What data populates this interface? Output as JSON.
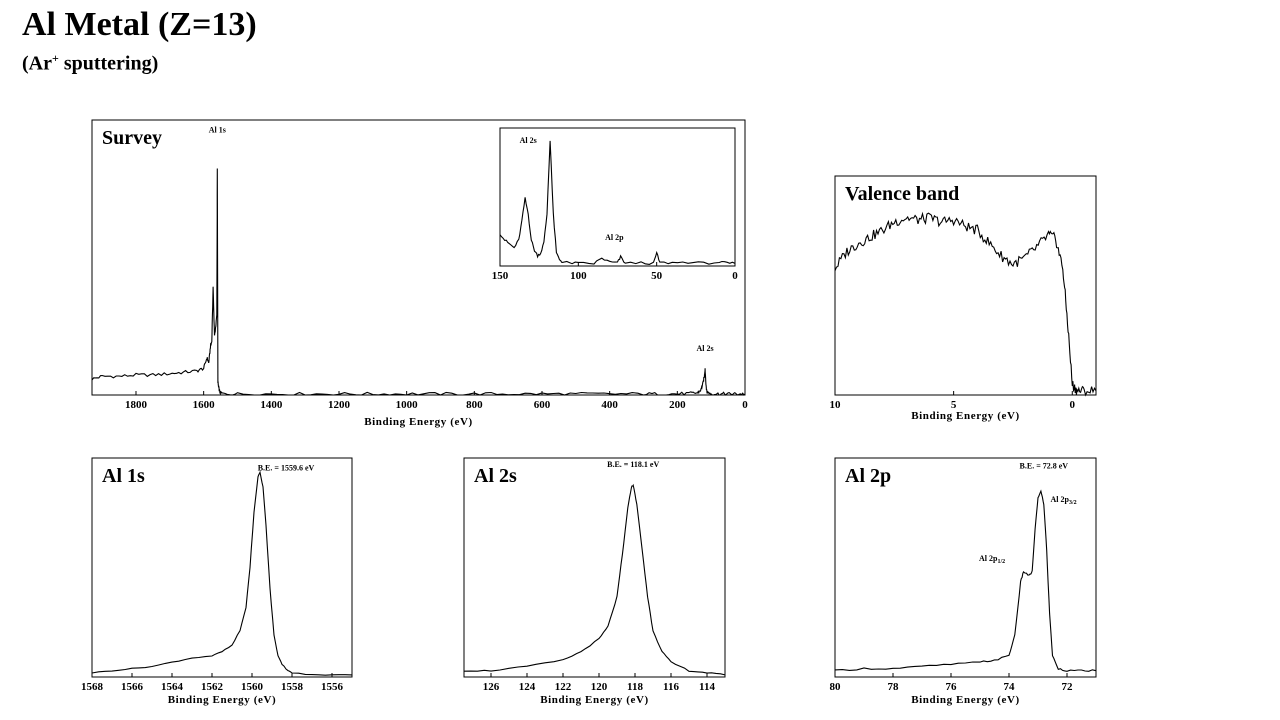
{
  "header": {
    "title": "Al Metal (Z=13)",
    "subtitle_pre": "(Ar",
    "subtitle_sup": "+",
    "subtitle_post": " sputtering)"
  },
  "chart_data": [
    {
      "id": "survey",
      "type": "line",
      "title": "Survey",
      "xlabel": "Binding Energy (eV)",
      "ylabel": "",
      "xlim": [
        1930,
        0
      ],
      "ylim": [
        0,
        1.0
      ],
      "xticks": [
        1800,
        1600,
        1400,
        1200,
        1000,
        800,
        600,
        400,
        200,
        0
      ],
      "annotations": [
        {
          "text": "Al 1s",
          "x": 1559.6,
          "y": 0.93
        },
        {
          "text": "Al 2s",
          "x": 118,
          "y": 0.09
        }
      ],
      "x": [
        1930,
        1900,
        1850,
        1800,
        1750,
        1700,
        1660,
        1620,
        1600,
        1590,
        1585,
        1580,
        1576,
        1572,
        1568,
        1564,
        1561,
        1559.6,
        1558,
        1556,
        1552,
        1545,
        1500,
        1400,
        1300,
        1200,
        1100,
        1000,
        900,
        800,
        700,
        600,
        500,
        400,
        300,
        250,
        200,
        160,
        140,
        130,
        125,
        120,
        118,
        115,
        112,
        100,
        80,
        60,
        40,
        20,
        0
      ],
      "y": [
        0.06,
        0.07,
        0.07,
        0.075,
        0.075,
        0.08,
        0.085,
        0.09,
        0.1,
        0.14,
        0.12,
        0.18,
        0.2,
        0.4,
        0.22,
        0.26,
        0.3,
        0.85,
        0.05,
        0.03,
        0.01,
        0.005,
        0.004,
        0.004,
        0.004,
        0.004,
        0.004,
        0.004,
        0.004,
        0.004,
        0.004,
        0.004,
        0.004,
        0.004,
        0.004,
        0.004,
        0.004,
        0.006,
        0.008,
        0.02,
        0.04,
        0.07,
        0.1,
        0.03,
        0.01,
        0.005,
        0.004,
        0.004,
        0.004,
        0.004,
        0.004
      ]
    },
    {
      "id": "survey-inset",
      "type": "line",
      "title": "",
      "xlabel": "",
      "ylabel": "",
      "xlim": [
        150,
        0
      ],
      "ylim": [
        0,
        1.0
      ],
      "xticks": [
        150,
        100,
        50,
        0
      ],
      "annotations": [
        {
          "text": "Al 2s",
          "x": 132,
          "y": 0.9
        },
        {
          "text": "Al 2p",
          "x": 77,
          "y": 0.17
        }
      ],
      "x": [
        150,
        147,
        144,
        141,
        138,
        136,
        134,
        132,
        130,
        128,
        126,
        124,
        122,
        120,
        118,
        116,
        114,
        112,
        110,
        106,
        100,
        90,
        85,
        80,
        75,
        73,
        70,
        60,
        52,
        50,
        48,
        40,
        30,
        20,
        10,
        5,
        0
      ],
      "y": [
        0.25,
        0.2,
        0.17,
        0.14,
        0.2,
        0.35,
        0.52,
        0.4,
        0.2,
        0.12,
        0.08,
        0.1,
        0.18,
        0.4,
        0.97,
        0.4,
        0.1,
        0.05,
        0.03,
        0.025,
        0.02,
        0.02,
        0.06,
        0.03,
        0.025,
        0.07,
        0.02,
        0.025,
        0.02,
        0.1,
        0.025,
        0.025,
        0.03,
        0.02,
        0.03,
        0.02,
        0.02
      ]
    },
    {
      "id": "valence",
      "type": "line",
      "title": "Valence band",
      "xlabel": "Binding Energy (eV)",
      "ylabel": "",
      "xlim": [
        10,
        -1
      ],
      "ylim": [
        0,
        1.0
      ],
      "xticks": [
        10,
        5,
        0
      ],
      "annotations": [],
      "x": [
        10,
        9.5,
        9,
        8.5,
        8,
        7.5,
        7,
        6.5,
        6,
        5.5,
        5,
        4.5,
        4,
        3.5,
        3,
        2.5,
        2,
        1.5,
        1,
        0.7,
        0.4,
        0.2,
        0,
        -0.2,
        -0.5,
        -1
      ],
      "y": [
        0.6,
        0.68,
        0.72,
        0.75,
        0.78,
        0.82,
        0.84,
        0.83,
        0.84,
        0.82,
        0.83,
        0.8,
        0.78,
        0.72,
        0.66,
        0.62,
        0.65,
        0.7,
        0.76,
        0.74,
        0.6,
        0.35,
        0.05,
        0.02,
        0.02,
        0.02
      ]
    },
    {
      "id": "al1s",
      "type": "line",
      "title": "Al 1s",
      "xlabel": "Binding Energy (eV)",
      "ylabel": "",
      "xlim": [
        1568,
        1555
      ],
      "ylim": [
        0,
        1.0
      ],
      "xticks": [
        1568,
        1566,
        1564,
        1562,
        1560,
        1558,
        1556
      ],
      "annotations": [
        {
          "text": "B.E. = 1559.6 eV",
          "x": 1559.6,
          "y": 0.97
        }
      ],
      "x": [
        1568,
        1567,
        1566,
        1565,
        1564,
        1563,
        1562,
        1561.5,
        1561,
        1560.6,
        1560.3,
        1560.1,
        1559.9,
        1559.7,
        1559.6,
        1559.45,
        1559.3,
        1559.1,
        1558.9,
        1558.7,
        1558.5,
        1558.2,
        1558,
        1557,
        1556,
        1555
      ],
      "y": [
        0.02,
        0.03,
        0.04,
        0.05,
        0.07,
        0.09,
        0.1,
        0.12,
        0.15,
        0.22,
        0.33,
        0.52,
        0.78,
        0.95,
        0.97,
        0.9,
        0.72,
        0.42,
        0.2,
        0.1,
        0.06,
        0.03,
        0.02,
        0.01,
        0.01,
        0.01
      ]
    },
    {
      "id": "al2s",
      "type": "line",
      "title": "Al 2s",
      "xlabel": "Binding Energy (eV)",
      "ylabel": "",
      "xlim": [
        127.5,
        113
      ],
      "ylim": [
        0,
        1.0
      ],
      "xticks": [
        126,
        124,
        122,
        120,
        118,
        116,
        114
      ],
      "annotations": [
        {
          "text": "B.E. = 118.1 eV",
          "x": 118.1,
          "y": 0.93
        }
      ],
      "x": [
        127.5,
        126,
        124,
        122,
        121,
        120,
        119.5,
        119,
        118.7,
        118.4,
        118.2,
        118.1,
        117.9,
        117.6,
        117.3,
        117,
        116.5,
        116,
        115,
        114,
        113
      ],
      "y": [
        0.03,
        0.03,
        0.05,
        0.08,
        0.12,
        0.18,
        0.24,
        0.38,
        0.58,
        0.8,
        0.9,
        0.91,
        0.82,
        0.6,
        0.38,
        0.22,
        0.12,
        0.07,
        0.03,
        0.02,
        0.01
      ]
    },
    {
      "id": "al2p",
      "type": "line",
      "title": "Al 2p",
      "xlabel": "Binding Energy (eV)",
      "ylabel": "",
      "xlim": [
        80,
        71
      ],
      "ylim": [
        0,
        1.0
      ],
      "xticks": [
        80,
        78,
        76,
        74,
        72
      ],
      "annotations": [
        {
          "text": "B.E. = 72.8 eV",
          "x": 72.8,
          "y": 0.95
        },
        {
          "text": "Al 2p",
          "sub": "3/2",
          "x": 72.6,
          "y": 0.83
        },
        {
          "text": "Al 2p",
          "sub": "1/2",
          "x": 74.1,
          "y": 0.55
        }
      ],
      "x": [
        80,
        79,
        78,
        77,
        76,
        75,
        74.5,
        74,
        73.8,
        73.6,
        73.5,
        73.3,
        73.2,
        73.1,
        73.0,
        72.9,
        72.8,
        72.7,
        72.6,
        72.5,
        72.3,
        72,
        71.5,
        71
      ],
      "y": [
        0.03,
        0.04,
        0.04,
        0.05,
        0.06,
        0.07,
        0.08,
        0.1,
        0.2,
        0.45,
        0.5,
        0.48,
        0.5,
        0.7,
        0.85,
        0.88,
        0.82,
        0.6,
        0.3,
        0.1,
        0.04,
        0.03,
        0.03,
        0.03
      ]
    }
  ]
}
